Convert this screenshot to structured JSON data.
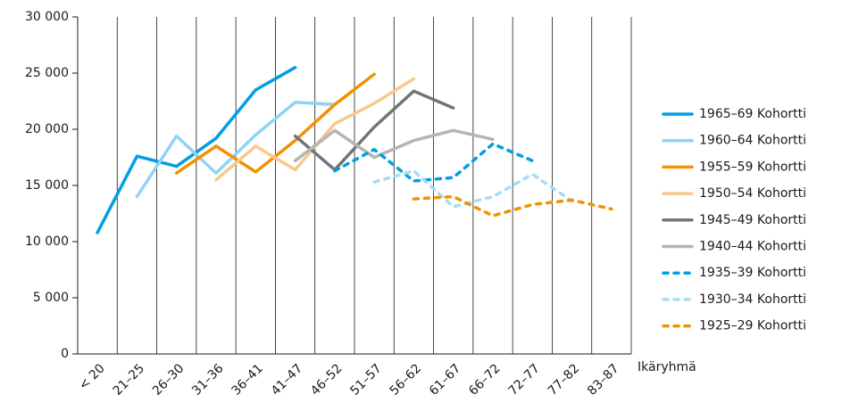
{
  "chart_data": {
    "type": "line",
    "x_label": "Ikäryhmä",
    "categories": [
      "< 20",
      "21–25",
      "26–30",
      "31–36",
      "36–41",
      "41–47",
      "46–52",
      "51–57",
      "56–62",
      "61–67",
      "66–72",
      "72–77",
      "77–82",
      "83–87"
    ],
    "ylim": [
      0,
      30000
    ],
    "yticks": [
      0,
      {
        "value": 5000,
        "label": "5 000"
      },
      {
        "value": 10000,
        "label": "10 000"
      },
      {
        "value": 15000,
        "label": "15 000"
      },
      {
        "value": 20000,
        "label": "20 000"
      },
      {
        "value": 25000,
        "label": "25 000"
      },
      {
        "value": 30000,
        "label": "30 000"
      }
    ],
    "legend": "right",
    "series": [
      {
        "name": "1965–69 Kohortti",
        "color": "#009fe3",
        "dashed": false,
        "values": [
          10800,
          17600,
          16700,
          19200,
          23500,
          25500,
          null,
          null,
          null,
          null,
          null,
          null,
          null,
          null
        ]
      },
      {
        "name": "1960–64 Kohortti",
        "color": "#8fd3f5",
        "dashed": false,
        "values": [
          null,
          14000,
          19400,
          16100,
          19500,
          22400,
          22200,
          null,
          null,
          null,
          null,
          null,
          null,
          null
        ]
      },
      {
        "name": "1955–59 Kohortti",
        "color": "#f39200",
        "dashed": false,
        "values": [
          null,
          null,
          16100,
          18500,
          16200,
          19000,
          22200,
          24900,
          null,
          null,
          null,
          null,
          null,
          null
        ]
      },
      {
        "name": "1950–54 Kohortti",
        "color": "#f8c98b",
        "dashed": false,
        "values": [
          null,
          null,
          null,
          15500,
          18500,
          16400,
          20500,
          22300,
          24500,
          null,
          null,
          null,
          null,
          null
        ]
      },
      {
        "name": "1945–49 Kohortti",
        "color": "#737478",
        "dashed": false,
        "values": [
          null,
          null,
          null,
          null,
          null,
          19400,
          16400,
          20200,
          23400,
          21900,
          null,
          null,
          null,
          null
        ]
      },
      {
        "name": "1940–44 Kohortti",
        "color": "#b5b5b5",
        "dashed": false,
        "values": [
          null,
          null,
          null,
          null,
          null,
          17200,
          19900,
          17500,
          19000,
          19900,
          19100,
          null,
          null,
          null
        ]
      },
      {
        "name": "1935–39 Kohortti",
        "color": "#009fe3",
        "dashed": true,
        "values": [
          null,
          null,
          null,
          null,
          null,
          null,
          16300,
          18200,
          15400,
          15700,
          18700,
          17200,
          null,
          null
        ]
      },
      {
        "name": "1930–34 Kohortti",
        "color": "#a6dcf6",
        "dashed": true,
        "values": [
          null,
          null,
          null,
          null,
          null,
          null,
          null,
          15300,
          16300,
          13100,
          14000,
          16000,
          13600,
          null
        ]
      },
      {
        "name": "1925–29 Kohortti",
        "color": "#f39200",
        "dashed": true,
        "values": [
          null,
          null,
          null,
          null,
          null,
          null,
          null,
          null,
          13800,
          14000,
          12300,
          13300,
          13700,
          12900
        ]
      }
    ]
  }
}
